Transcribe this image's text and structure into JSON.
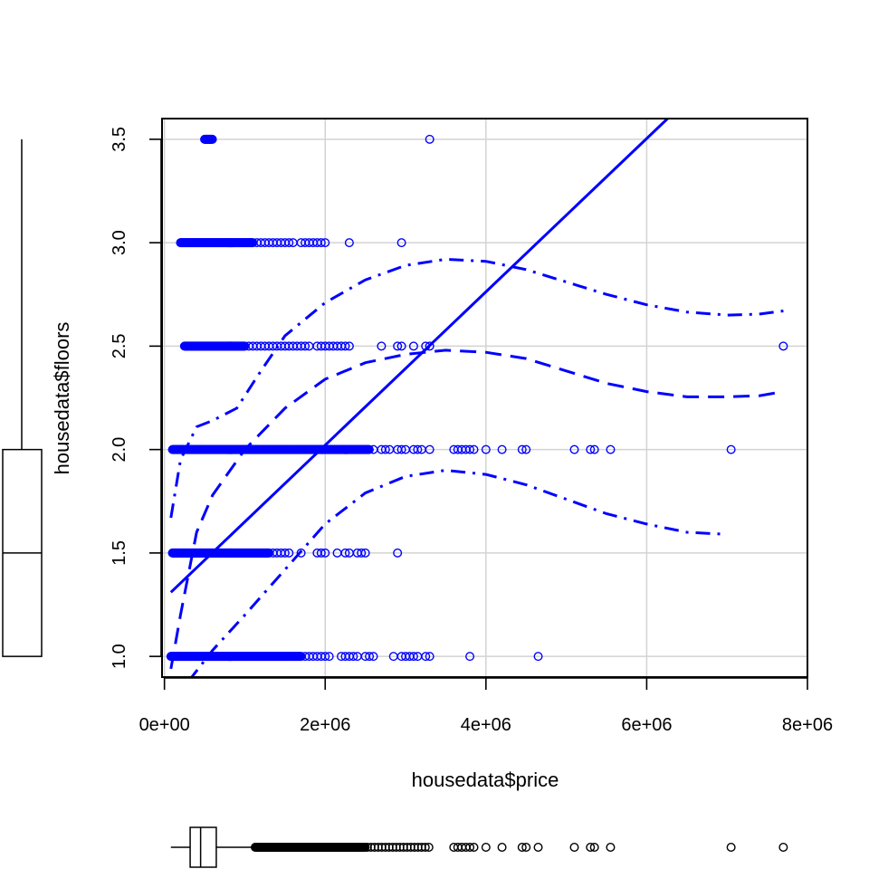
{
  "chart_data": {
    "type": "scatter",
    "title": "",
    "xlabel": "housedata$price",
    "ylabel": "housedata$floors",
    "xlim": [
      -30000,
      8000000
    ],
    "ylim": [
      0.9,
      3.6
    ],
    "grid": true,
    "x_ticks": [
      {
        "value": 0,
        "label": "0e+00"
      },
      {
        "value": 2000000,
        "label": "2e+06"
      },
      {
        "value": 4000000,
        "label": "4e+06"
      },
      {
        "value": 6000000,
        "label": "6e+06"
      },
      {
        "value": 8000000,
        "label": "8e+06"
      }
    ],
    "y_ticks": [
      {
        "value": 1.0,
        "label": "1.0"
      },
      {
        "value": 1.5,
        "label": "1.5"
      },
      {
        "value": 2.0,
        "label": "2.0"
      },
      {
        "value": 2.5,
        "label": "2.5"
      },
      {
        "value": 3.0,
        "label": "3.0"
      },
      {
        "value": 3.5,
        "label": "3.5"
      }
    ],
    "colors": {
      "points": "#0000ff",
      "fit": "#0000ff",
      "grid": "#d3d3d3",
      "axis": "#000000"
    },
    "points": {
      "levels": [
        {
          "y": 1.0,
          "dense_range": [
            80000,
            1700000
          ],
          "extra_x": [
            1750000,
            1800000,
            1850000,
            1900000,
            1950000,
            2000000,
            2050000,
            2200000,
            2250000,
            2300000,
            2350000,
            2400000,
            2500000,
            2550000,
            2600000,
            2850000,
            2950000,
            3000000,
            3050000,
            3100000,
            3150000,
            3250000,
            3300000,
            3800000,
            4650000
          ]
        },
        {
          "y": 1.5,
          "dense_range": [
            100000,
            1300000
          ],
          "extra_x": [
            1350000,
            1400000,
            1450000,
            1500000,
            1550000,
            1700000,
            1900000,
            1950000,
            2000000,
            2150000,
            2250000,
            2300000,
            2400000,
            2450000,
            2500000,
            2900000
          ]
        },
        {
          "y": 2.0,
          "dense_range": [
            100000,
            2550000
          ],
          "extra_x": [
            2600000,
            2700000,
            2750000,
            2800000,
            2900000,
            2950000,
            3000000,
            3100000,
            3150000,
            3200000,
            3300000,
            3600000,
            3650000,
            3700000,
            3750000,
            3800000,
            3850000,
            4000000,
            4200000,
            4450000,
            4500000,
            5100000,
            5300000,
            5350000,
            5550000,
            7050000
          ]
        },
        {
          "y": 2.5,
          "dense_range": [
            250000,
            1000000
          ],
          "extra_x": [
            1050000,
            1100000,
            1150000,
            1200000,
            1250000,
            1300000,
            1350000,
            1400000,
            1450000,
            1500000,
            1550000,
            1600000,
            1650000,
            1700000,
            1750000,
            1800000,
            1900000,
            1950000,
            2000000,
            2050000,
            2100000,
            2150000,
            2200000,
            2250000,
            2300000,
            2700000,
            2900000,
            2950000,
            3100000,
            3250000,
            3300000,
            7700000
          ]
        },
        {
          "y": 3.0,
          "dense_range": [
            200000,
            1100000
          ],
          "extra_x": [
            1150000,
            1200000,
            1250000,
            1300000,
            1350000,
            1400000,
            1450000,
            1500000,
            1550000,
            1600000,
            1700000,
            1750000,
            1800000,
            1850000,
            1900000,
            1950000,
            2000000,
            2300000,
            2950000
          ]
        },
        {
          "y": 3.5,
          "dense_range": [
            500000,
            600000
          ],
          "extra_x": [
            3300000
          ]
        }
      ]
    },
    "linear_fit": {
      "x": [
        80000,
        6260000
      ],
      "y": [
        1.31,
        3.6
      ]
    },
    "smooth_fit": {
      "x": [
        80000,
        200000,
        400000,
        600000,
        1000000,
        1500000,
        2000000,
        2500000,
        3000000,
        3500000,
        4000000,
        4500000,
        5000000,
        5500000,
        6000000,
        6500000,
        7000000,
        7400000,
        7700000
      ],
      "y": [
        0.94,
        1.2,
        1.6,
        1.78,
        2.0,
        2.2,
        2.34,
        2.42,
        2.46,
        2.48,
        2.47,
        2.44,
        2.38,
        2.32,
        2.28,
        2.255,
        2.255,
        2.26,
        2.28
      ]
    },
    "smooth_upper": {
      "x": [
        80000,
        200000,
        400000,
        600000,
        900000,
        1200000,
        1500000,
        2000000,
        2500000,
        3000000,
        3500000,
        4000000,
        4500000,
        5000000,
        5500000,
        6000000,
        6500000,
        7000000,
        7400000,
        7700000
      ],
      "y": [
        1.67,
        1.95,
        2.11,
        2.14,
        2.2,
        2.38,
        2.55,
        2.71,
        2.82,
        2.89,
        2.92,
        2.91,
        2.87,
        2.81,
        2.75,
        2.7,
        2.665,
        2.65,
        2.655,
        2.67
      ]
    },
    "smooth_lower": {
      "x": [
        300000,
        600000,
        1000000,
        1500000,
        2000000,
        2500000,
        3000000,
        3500000,
        4000000,
        4500000,
        5000000,
        5500000,
        6000000,
        6500000,
        7000000
      ],
      "y": [
        0.88,
        1.03,
        1.2,
        1.42,
        1.64,
        1.79,
        1.87,
        1.9,
        1.88,
        1.83,
        1.76,
        1.69,
        1.64,
        1.6,
        1.59
      ]
    },
    "boxplot_x": {
      "min": 80000,
      "q1": 320000,
      "median": 450000,
      "q3": 645000,
      "upper_whisker": 1130000,
      "outliers_range": [
        1130000,
        3300000
      ],
      "outlier_extra": [
        3600000,
        3650000,
        3700000,
        3750000,
        3800000,
        3850000,
        4000000,
        4200000,
        4450000,
        4500000,
        4650000,
        5100000,
        5300000,
        5350000,
        5550000,
        7050000,
        7700000
      ]
    },
    "boxplot_y": {
      "min": 1.0,
      "q1": 1.0,
      "median": 1.5,
      "q3": 2.0,
      "max": 3.5
    }
  }
}
